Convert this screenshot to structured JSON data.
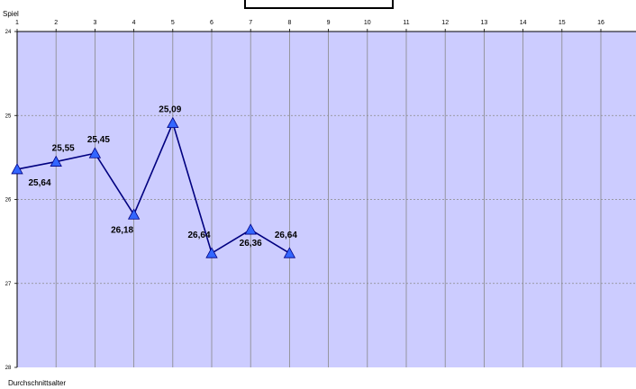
{
  "chart_data": {
    "type": "line",
    "title": "",
    "xlabel": "Spiel",
    "ylabel": "Durchschnittsalter",
    "x_ticks": [
      "1",
      "2",
      "3",
      "4",
      "5",
      "6",
      "7",
      "8",
      "9",
      "10",
      "11",
      "12",
      "13",
      "14",
      "15",
      "16",
      "1"
    ],
    "y_ticks": [
      "24",
      "25",
      "26",
      "27",
      "28"
    ],
    "y_axis_inverted": true,
    "ylim": [
      24,
      28
    ],
    "xlim": [
      1,
      17
    ],
    "grid": true,
    "series": [
      {
        "x": [
          1,
          2,
          3,
          4,
          5,
          6,
          7,
          8
        ],
        "values": [
          25.64,
          25.55,
          25.45,
          26.18,
          25.09,
          26.64,
          26.36,
          26.64
        ],
        "labels": [
          "25,64",
          "25,55",
          "25,45",
          "26,18",
          "25,09",
          "26,64",
          "26,36",
          "26,64"
        ]
      }
    ],
    "colors": {
      "plot_area": "#ccccff",
      "line": "#000080",
      "marker": "#3366ff",
      "grid": "#888888"
    }
  }
}
